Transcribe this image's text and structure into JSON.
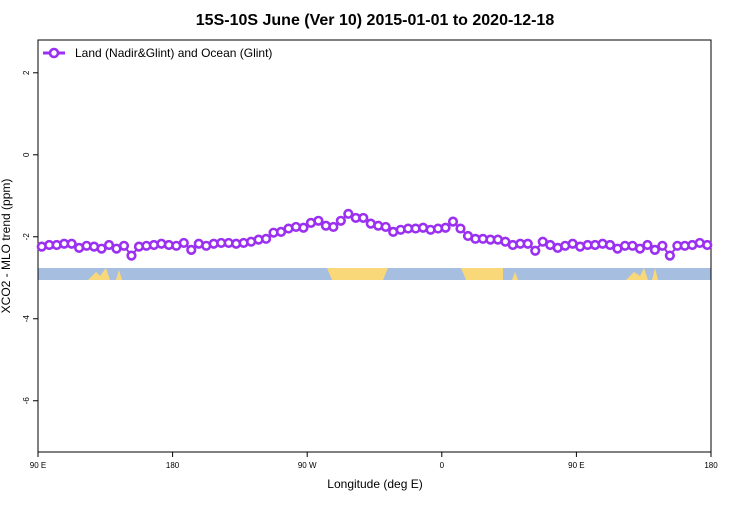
{
  "chart_data": {
    "type": "line",
    "title": "15S-10S June (Ver 10)   2015-01-01 to 2020-12-18",
    "x_label": "Longitude (deg E)",
    "y_label": "XCO2 - MLO trend (ppm)",
    "x": [
      92.5,
      97.5,
      102.5,
      107.5,
      112.5,
      117.5,
      122.5,
      127.5,
      132.5,
      137.5,
      142.5,
      147.5,
      152.5,
      157.5,
      162.5,
      167.5,
      172.5,
      177.5,
      182.5,
      187.5,
      192.5,
      197.5,
      202.5,
      207.5,
      212.5,
      217.5,
      222.5,
      227.5,
      232.5,
      237.5,
      242.5,
      247.5,
      252.5,
      257.5,
      262.5,
      267.5,
      272.5,
      277.5,
      282.5,
      287.5,
      292.5,
      297.5,
      302.5,
      307.5,
      312.5,
      317.5,
      322.5,
      327.5,
      332.5,
      337.5,
      342.5,
      347.5,
      352.5,
      357.5,
      362.5,
      367.5,
      372.5,
      377.5,
      382.5,
      387.5,
      392.5,
      397.5,
      402.5,
      407.5,
      412.5,
      417.5,
      422.5,
      427.5,
      432.5,
      437.5,
      442.5,
      447.5,
      452.5,
      457.5,
      462.5,
      467.5,
      472.5,
      477.5,
      482.5,
      487.5,
      492.5,
      497.5,
      502.5,
      507.5,
      512.5,
      517.5,
      522.5,
      527.5,
      532.5,
      537.5
    ],
    "series": [
      {
        "name": "Land (Nadir&Glint) and Ocean (Glint)",
        "color": "#9b30f0",
        "values": [
          -2.24,
          -2.2,
          -2.2,
          -2.17,
          -2.17,
          -2.27,
          -2.22,
          -2.24,
          -2.29,
          -2.2,
          -2.29,
          -2.22,
          -2.46,
          -2.24,
          -2.22,
          -2.2,
          -2.17,
          -2.2,
          -2.22,
          -2.15,
          -2.32,
          -2.17,
          -2.22,
          -2.17,
          -2.15,
          -2.15,
          -2.17,
          -2.15,
          -2.12,
          -2.07,
          -2.05,
          -1.9,
          -1.88,
          -1.8,
          -1.76,
          -1.78,
          -1.66,
          -1.61,
          -1.73,
          -1.76,
          -1.61,
          -1.44,
          -1.54,
          -1.54,
          -1.68,
          -1.73,
          -1.76,
          -1.88,
          -1.83,
          -1.8,
          -1.8,
          -1.78,
          -1.83,
          -1.8,
          -1.78,
          -1.63,
          -1.8,
          -1.98,
          -2.05,
          -2.05,
          -2.07,
          -2.07,
          -2.12,
          -2.2,
          -2.17,
          -2.17,
          -2.34,
          -2.12,
          -2.2,
          -2.27,
          -2.22,
          -2.17,
          -2.24,
          -2.2,
          -2.2,
          -2.17,
          -2.2,
          -2.29,
          -2.22,
          -2.22,
          -2.29,
          -2.2,
          -2.32,
          -2.22,
          -2.46,
          -2.22,
          -2.22,
          -2.2,
          -2.15,
          -2.2
        ]
      }
    ],
    "xlim": [
      90,
      540
    ],
    "xticks": [
      {
        "value": 90,
        "label": "90 E"
      },
      180,
      {
        "value": 270,
        "label": "90 W"
      },
      {
        "value": 360,
        "label": "0"
      },
      {
        "value": 450,
        "label": "90 E"
      },
      {
        "value": 540,
        "label": "180"
      }
    ],
    "ylim": [
      -7.25,
      2.8
    ],
    "yticks": [
      2,
      0,
      -2,
      -4,
      -6
    ],
    "legend": "top-left"
  }
}
